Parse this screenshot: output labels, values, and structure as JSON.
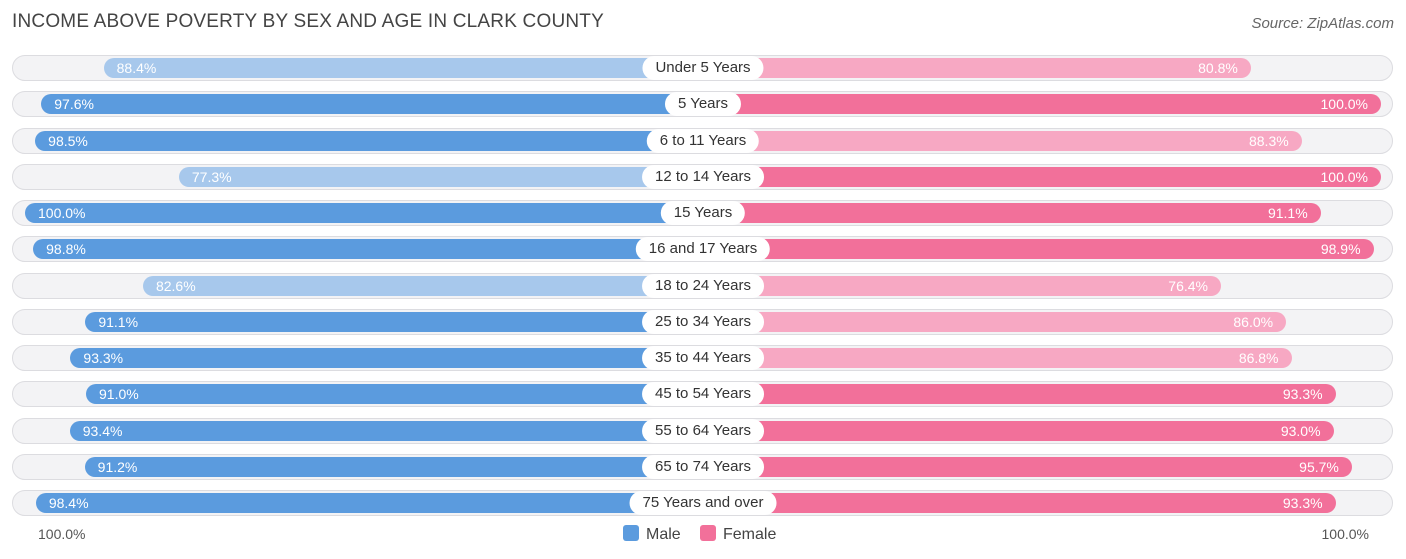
{
  "title": "INCOME ABOVE POVERTY BY SEX AND AGE IN CLARK COUNTY",
  "source": "Source: ZipAtlas.com",
  "axis": {
    "left_label": "100.0%",
    "right_label": "100.0%"
  },
  "legend": {
    "male_label": "Male",
    "female_label": "Female"
  },
  "colors": {
    "male_strong": "#5b9bde",
    "male_light": "#a7c8ec",
    "female_strong": "#f2709a",
    "female_light": "#f7a8c3",
    "track": "#f3f3f5"
  },
  "chart_data": {
    "type": "bar",
    "orientation": "horizontal-diverging",
    "title": "INCOME ABOVE POVERTY BY SEX AND AGE IN CLARK COUNTY",
    "xlim": [
      0,
      100
    ],
    "categories": [
      "Under 5 Years",
      "5 Years",
      "6 to 11 Years",
      "12 to 14 Years",
      "15 Years",
      "16 and 17 Years",
      "18 to 24 Years",
      "25 to 34 Years",
      "35 to 44 Years",
      "45 to 54 Years",
      "55 to 64 Years",
      "65 to 74 Years",
      "75 Years and over"
    ],
    "series": [
      {
        "name": "Male",
        "values": [
          88.4,
          97.6,
          98.5,
          77.3,
          100.0,
          98.8,
          82.6,
          91.1,
          93.3,
          91.0,
          93.4,
          91.2,
          98.4
        ],
        "labels": [
          "88.4%",
          "97.6%",
          "98.5%",
          "77.3%",
          "100.0%",
          "98.8%",
          "82.6%",
          "91.1%",
          "93.3%",
          "91.0%",
          "93.4%",
          "91.2%",
          "98.4%"
        ]
      },
      {
        "name": "Female",
        "values": [
          80.8,
          100.0,
          88.3,
          100.0,
          91.1,
          98.9,
          76.4,
          86.0,
          86.8,
          93.3,
          93.0,
          95.7,
          93.3
        ],
        "labels": [
          "80.8%",
          "100.0%",
          "88.3%",
          "100.0%",
          "91.1%",
          "98.9%",
          "76.4%",
          "86.0%",
          "86.8%",
          "93.3%",
          "93.0%",
          "95.7%",
          "93.3%"
        ]
      }
    ],
    "legend_position": "bottom-center",
    "grid": false
  }
}
